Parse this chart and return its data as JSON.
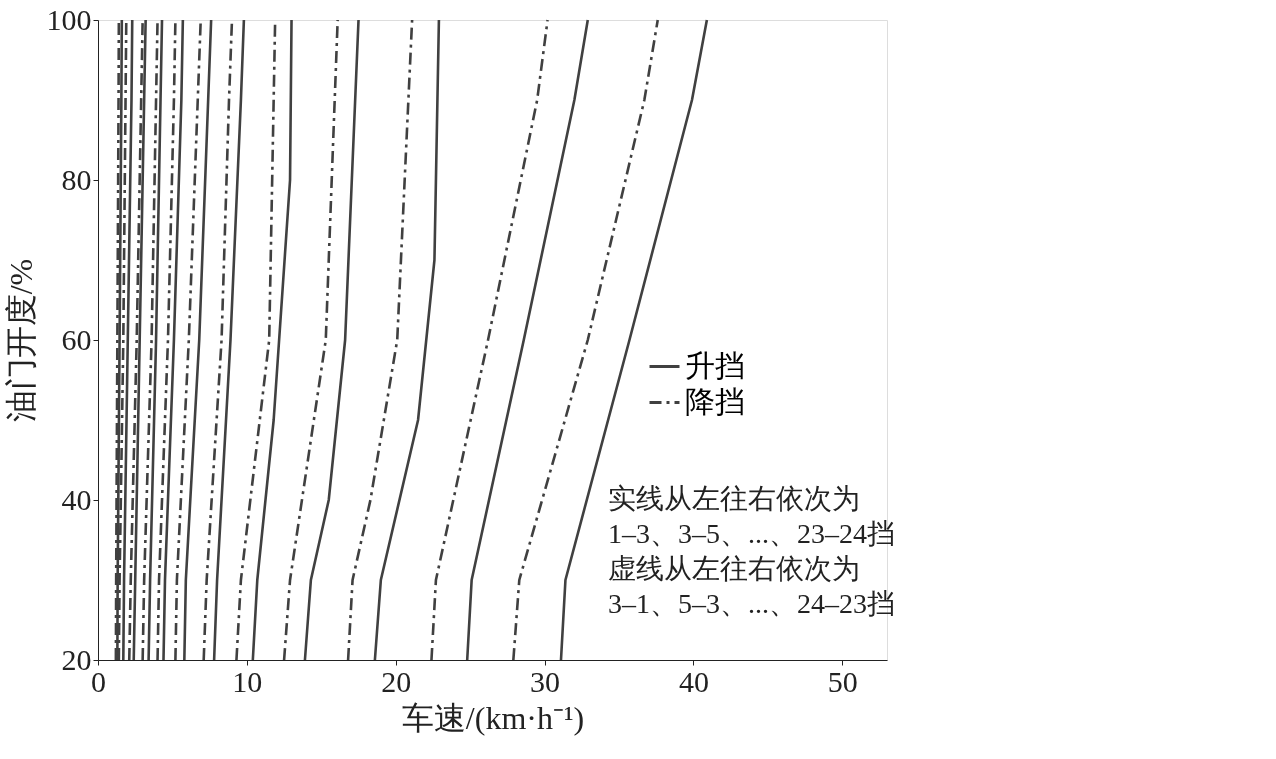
{
  "chart_data": {
    "type": "line",
    "xlabel": "车速/(km·h⁻¹)",
    "ylabel": "油门开度/%",
    "xlim": [
      0,
      53
    ],
    "xticks": [
      0,
      10,
      20,
      30,
      40,
      50
    ],
    "ylim": [
      20,
      100
    ],
    "yticks": [
      20,
      40,
      60,
      80,
      100
    ],
    "grid": false,
    "legend": "right",
    "marker": "none",
    "annotations": [
      "实线从左往右依次为",
      "1–3、3–5、...、23–24挡",
      "虚线从左往右依次为",
      "3–1、5–3、...、24–23挡"
    ],
    "series": [
      {
        "name": "升挡",
        "color": "#404040",
        "line_style": "solid",
        "x": [
          1.3,
          1.32,
          1.45,
          1.57,
          1.6
        ],
        "values": [
          20,
          30,
          60,
          90,
          100
        ]
      },
      {
        "color": "#404040",
        "line_style": "solid",
        "x": [
          1.7,
          1.75,
          2.0,
          2.25,
          2.3
        ],
        "values": [
          20,
          30,
          60,
          90,
          100
        ]
      },
      {
        "color": "#404040",
        "line_style": "solid",
        "x": [
          2.4,
          2.5,
          2.8,
          3.1,
          3.2
        ],
        "values": [
          20,
          30,
          60,
          90,
          100
        ]
      },
      {
        "color": "#404040",
        "line_style": "solid",
        "x": [
          3.4,
          3.5,
          3.9,
          4.2,
          4.3
        ],
        "values": [
          20,
          30,
          60,
          90,
          100
        ]
      },
      {
        "color": "#404040",
        "line_style": "solid",
        "x": [
          4.4,
          4.5,
          5.1,
          5.6,
          5.7
        ],
        "values": [
          20,
          30,
          60,
          90,
          100
        ]
      },
      {
        "color": "#404040",
        "line_style": "solid",
        "x": [
          5.8,
          5.9,
          6.8,
          7.4,
          7.6
        ],
        "values": [
          20,
          30,
          60,
          90,
          100
        ]
      },
      {
        "color": "#404040",
        "line_style": "solid",
        "x": [
          7.8,
          8.0,
          8.9,
          9.6,
          9.8
        ],
        "values": [
          20,
          30,
          60,
          90,
          100
        ]
      },
      {
        "color": "#404040",
        "line_style": "solid",
        "x": [
          10.4,
          10.7,
          11.8,
          12.9,
          13.0
        ],
        "values": [
          20,
          30,
          50,
          80,
          100
        ]
      },
      {
        "color": "#404040",
        "line_style": "solid",
        "x": [
          13.9,
          14.3,
          15.5,
          16.6,
          17.5
        ],
        "values": [
          20,
          30,
          40,
          60,
          100
        ]
      },
      {
        "color": "#404040",
        "line_style": "solid",
        "x": [
          18.6,
          19.0,
          21.5,
          22.6,
          22.9
        ],
        "values": [
          20,
          30,
          50,
          70,
          100
        ]
      },
      {
        "color": "#404040",
        "line_style": "solid",
        "x": [
          24.8,
          25.1,
          28.6,
          32.0,
          32.9
        ],
        "values": [
          20,
          30,
          60,
          90,
          100
        ]
      },
      {
        "color": "#404040",
        "line_style": "solid",
        "x": [
          31.1,
          31.4,
          35.7,
          39.9,
          40.9
        ],
        "values": [
          20,
          30,
          60,
          90,
          100
        ]
      },
      {
        "name": "降挡",
        "color": "#404040",
        "line_style": "dashed",
        "x": [
          1.2,
          1.22,
          1.3,
          1.38,
          1.4
        ],
        "values": [
          20,
          30,
          60,
          90,
          100
        ]
      },
      {
        "color": "#404040",
        "line_style": "dashed",
        "x": [
          1.4,
          1.45,
          1.7,
          1.85,
          1.9
        ],
        "values": [
          20,
          30,
          60,
          90,
          100
        ]
      },
      {
        "color": "#404040",
        "line_style": "dashed",
        "x": [
          2.1,
          2.2,
          2.6,
          2.9,
          3.0
        ],
        "values": [
          20,
          30,
          60,
          90,
          100
        ]
      },
      {
        "color": "#404040",
        "line_style": "dashed",
        "x": [
          3.0,
          3.1,
          3.6,
          3.9,
          4.0
        ],
        "values": [
          20,
          30,
          60,
          90,
          100
        ]
      },
      {
        "color": "#404040",
        "line_style": "dashed",
        "x": [
          4.0,
          4.1,
          4.7,
          5.1,
          5.2
        ],
        "values": [
          20,
          30,
          60,
          90,
          100
        ]
      },
      {
        "color": "#404040",
        "line_style": "dashed",
        "x": [
          5.2,
          5.3,
          6.1,
          6.7,
          6.9
        ],
        "values": [
          20,
          30,
          60,
          90,
          100
        ]
      },
      {
        "color": "#404040",
        "line_style": "dashed",
        "x": [
          7.1,
          7.3,
          8.3,
          8.8,
          9.0
        ],
        "values": [
          20,
          30,
          60,
          90,
          100
        ]
      },
      {
        "color": "#404040",
        "line_style": "dashed",
        "x": [
          9.3,
          9.6,
          11.5,
          11.9
        ],
        "values": [
          20,
          30,
          60,
          100
        ]
      },
      {
        "color": "#404040",
        "line_style": "dashed",
        "x": [
          12.5,
          12.9,
          15.3,
          16.1
        ],
        "values": [
          20,
          30,
          60,
          100
        ]
      },
      {
        "color": "#404040",
        "line_style": "dashed",
        "x": [
          16.8,
          17.1,
          18.3,
          20.1,
          21.1
        ],
        "values": [
          20,
          30,
          40,
          60,
          100
        ]
      },
      {
        "color": "#404040",
        "line_style": "dashed",
        "x": [
          22.4,
          22.7,
          26.2,
          29.5,
          30.2
        ],
        "values": [
          20,
          30,
          60,
          90,
          100
        ]
      },
      {
        "color": "#404040",
        "line_style": "dashed",
        "x": [
          27.9,
          28.3,
          32.9,
          36.7,
          37.6
        ],
        "values": [
          20,
          30,
          60,
          90,
          100
        ]
      }
    ]
  }
}
